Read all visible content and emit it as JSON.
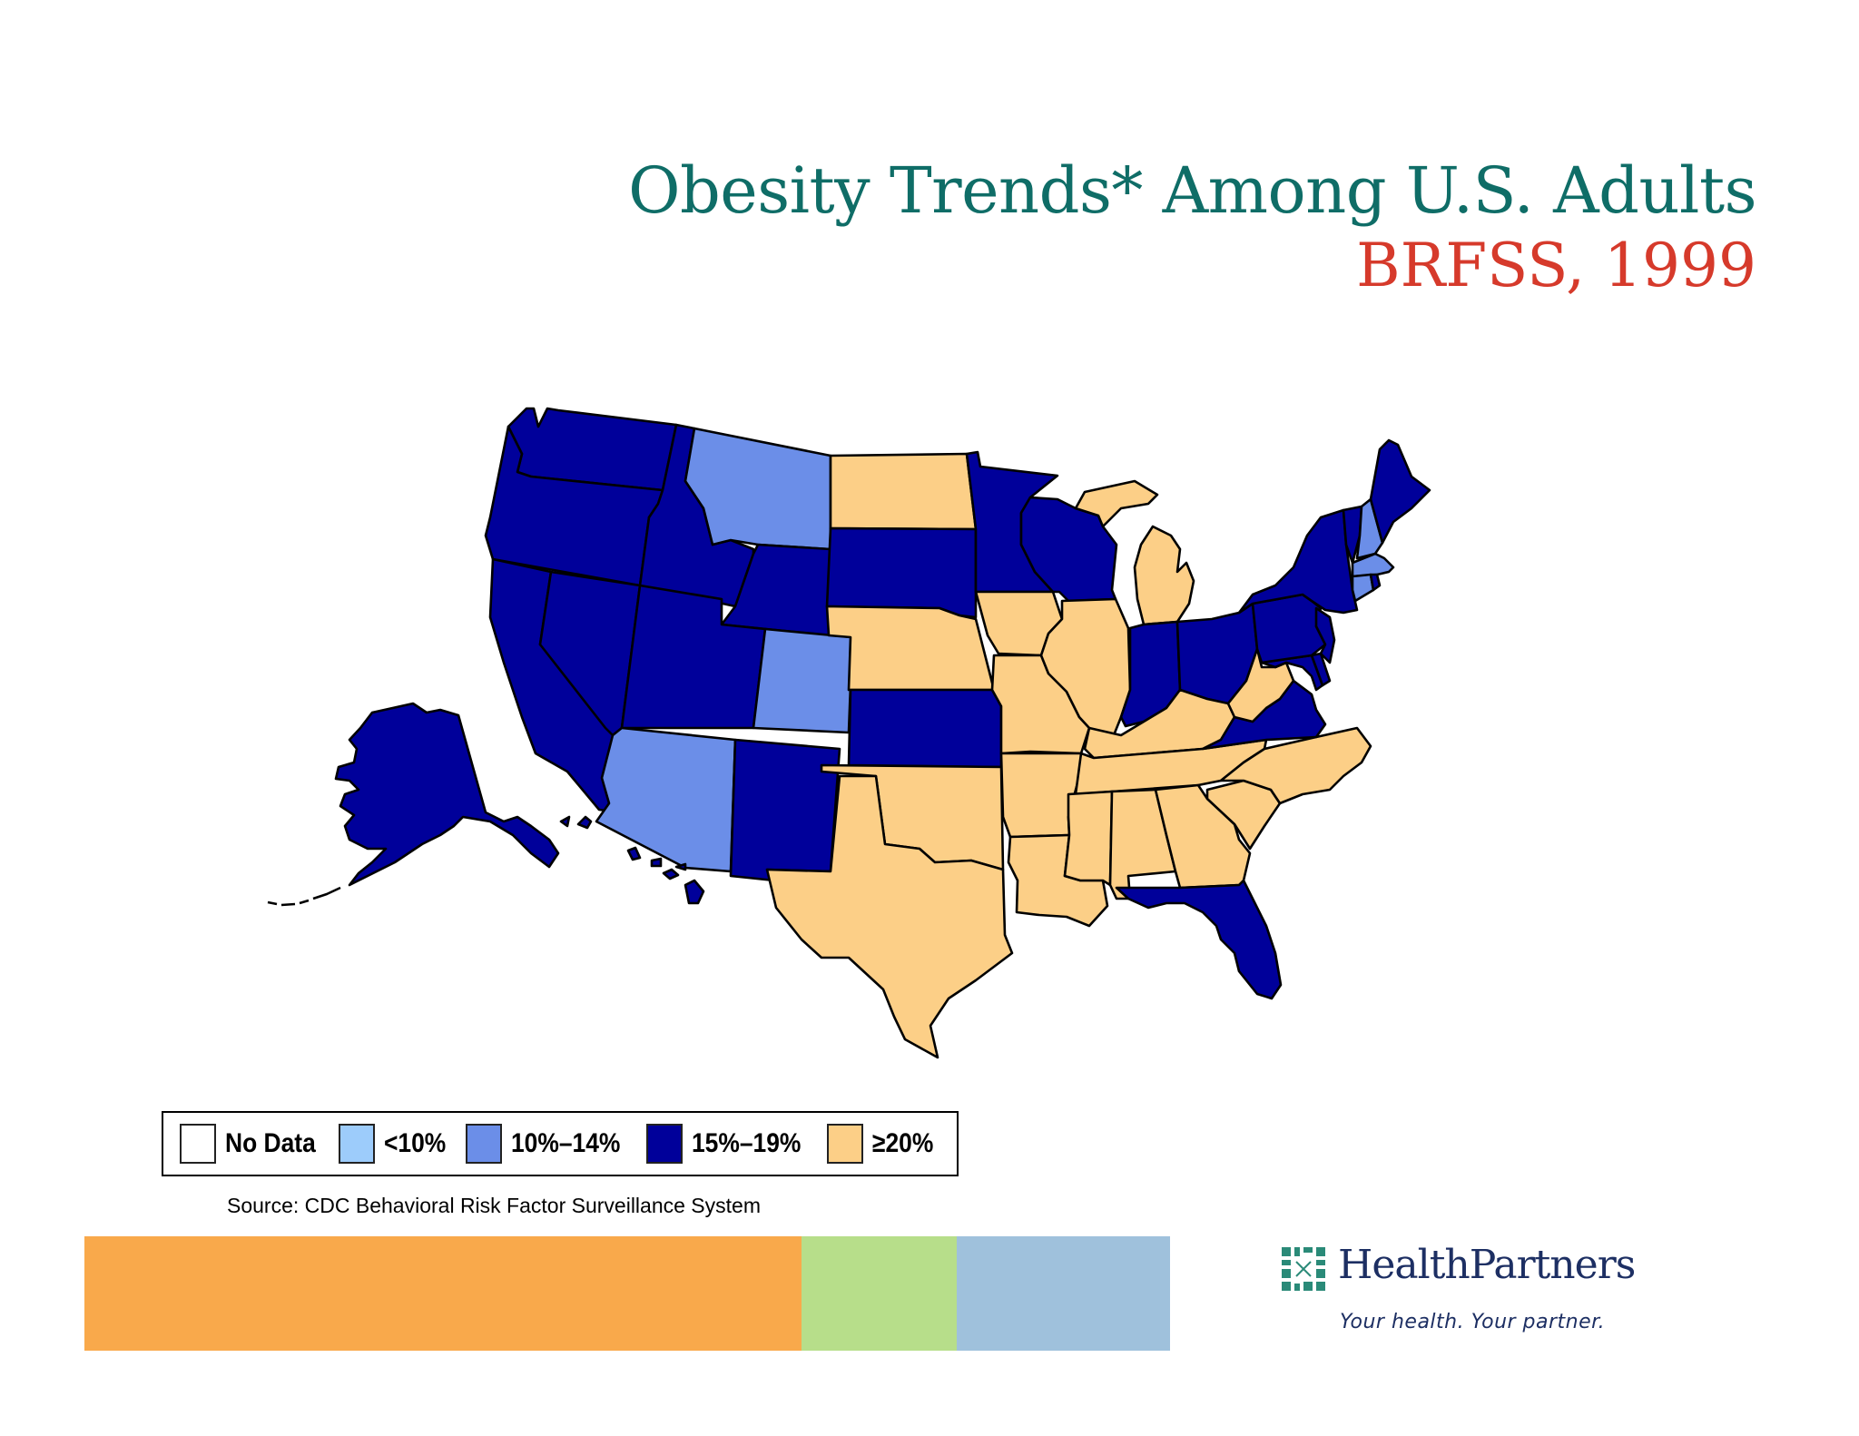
{
  "title": {
    "line1": "Obesity Trends* Among U.S. Adults",
    "line2": "BRFSS, 1999",
    "line1_color": "#0f6d67",
    "line2_color": "#d63a2b"
  },
  "legend": {
    "items": [
      {
        "label": "No Data",
        "color": "#ffffff"
      },
      {
        "label": "<10%",
        "color": "#9dccfb"
      },
      {
        "label": "10%–14%",
        "color": "#6b8ee8"
      },
      {
        "label": "15%–19%",
        "color": "#00009a"
      },
      {
        "label": "≥20%",
        "color": "#fccf87"
      }
    ]
  },
  "source": "Source: CDC Behavioral Risk Factor Surveillance  System",
  "color_band": [
    {
      "color": "#f9a94b"
    },
    {
      "color": "#b7de8a"
    },
    {
      "color": "#9fc1dc"
    }
  ],
  "logo": {
    "name": "HealthPartners",
    "tagline": "Your health. Your partner."
  },
  "map": {
    "category_colors": {
      "no_data": "#ffffff",
      "lt10": "#9dccfb",
      "10_14": "#6b8ee8",
      "15_19": "#00009a",
      "ge20": "#fccf87"
    },
    "states": {
      "WA": "15_19",
      "OR": "15_19",
      "CA": "15_19",
      "ID": "15_19",
      "NV": "15_19",
      "UT": "15_19",
      "WY": "15_19",
      "NM": "15_19",
      "SD": "15_19",
      "KS": "15_19",
      "MN": "15_19",
      "WI": "15_19",
      "IN": "15_19",
      "OH": "15_19",
      "PA": "15_19",
      "NY": "15_19",
      "VT": "15_19",
      "ME": "15_19",
      "NJ": "15_19",
      "DE": "15_19",
      "MD": "15_19",
      "VA": "15_19",
      "FL": "15_19",
      "AK": "15_19",
      "HI": "15_19",
      "RI": "15_19",
      "MT": "10_14",
      "CO": "10_14",
      "AZ": "10_14",
      "NH": "10_14",
      "MA": "10_14",
      "CT": "10_14",
      "ND": "ge20",
      "NE": "ge20",
      "IA": "ge20",
      "IL": "ge20",
      "MO": "ge20",
      "OK": "ge20",
      "TX": "ge20",
      "AR": "ge20",
      "LA": "ge20",
      "MS": "ge20",
      "AL": "ge20",
      "TN": "ge20",
      "KY": "ge20",
      "WV": "ge20",
      "NC": "ge20",
      "SC": "ge20",
      "GA": "ge20",
      "MI": "ge20"
    }
  }
}
